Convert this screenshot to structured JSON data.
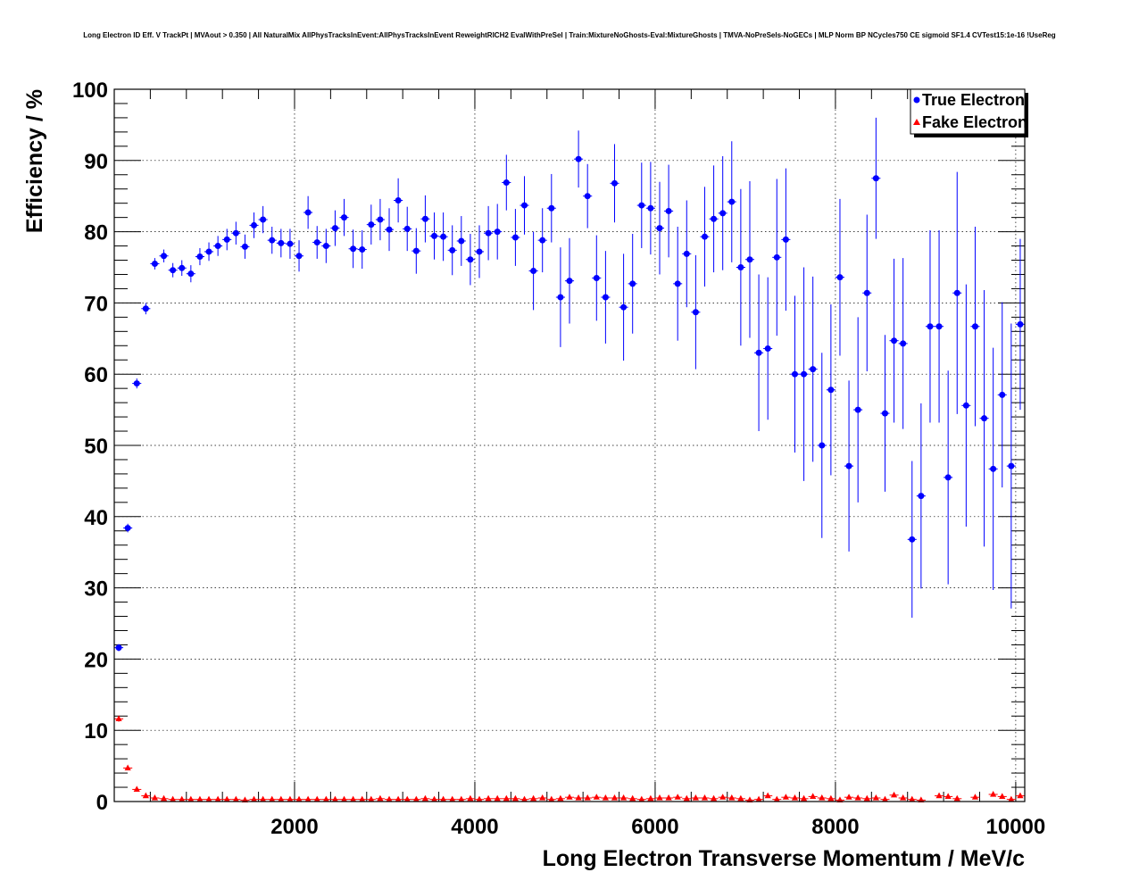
{
  "chart_data": {
    "type": "scatter",
    "title": "Long Electron ID Eff. V TrackPt | MVAout > 0.350 | All NaturalMix AllPhysTracksInEvent:AllPhysTracksInEvent ReweightRICH2 EvalWithPreSel | Train:MixtureNoGhosts-Eval:MixtureGhosts | TMVA-NoPreSels-NoGECs | MLP Norm BP NCycles750 CE sigmoid SF1.4 CVTest15:1e-16 !UseReg",
    "xlabel": "Long Electron Transverse Momentum / MeV/c",
    "ylabel": "Efficiency / %",
    "xlim": [
      0,
      10100
    ],
    "ylim": [
      0,
      100
    ],
    "x_ticks": [
      2000,
      4000,
      6000,
      8000,
      10000
    ],
    "y_ticks": [
      0,
      10,
      20,
      30,
      40,
      50,
      60,
      70,
      80,
      90,
      100
    ],
    "grid": true,
    "legend_position": "top-right",
    "bin_width": 100,
    "series": [
      {
        "name": "True Electron",
        "color": "#0000ff",
        "marker": "circle",
        "x": [
          50,
          150,
          250,
          350,
          450,
          550,
          650,
          750,
          850,
          950,
          1050,
          1150,
          1250,
          1350,
          1450,
          1550,
          1650,
          1750,
          1850,
          1950,
          2050,
          2150,
          2250,
          2350,
          2450,
          2550,
          2650,
          2750,
          2850,
          2950,
          3050,
          3150,
          3250,
          3350,
          3450,
          3550,
          3650,
          3750,
          3850,
          3950,
          4050,
          4150,
          4250,
          4350,
          4450,
          4550,
          4650,
          4750,
          4850,
          4950,
          5050,
          5150,
          5250,
          5350,
          5450,
          5550,
          5650,
          5750,
          5850,
          5950,
          6050,
          6150,
          6250,
          6350,
          6450,
          6550,
          6650,
          6750,
          6850,
          6950,
          7050,
          7150,
          7250,
          7350,
          7450,
          7550,
          7650,
          7750,
          7850,
          7950,
          8050,
          8150,
          8250,
          8350,
          8450,
          8550,
          8650,
          8750,
          8850,
          8950,
          9050,
          9150,
          9250,
          9350,
          9450,
          9550,
          9650,
          9750,
          9850,
          9950,
          10050
        ],
        "y": [
          21.6,
          38.4,
          58.7,
          69.2,
          75.5,
          76.6,
          74.6,
          74.9,
          74.1,
          76.5,
          77.2,
          78.0,
          78.9,
          79.8,
          77.9,
          80.9,
          81.7,
          78.8,
          78.4,
          78.3,
          76.6,
          82.7,
          78.5,
          78.0,
          80.5,
          82.0,
          77.6,
          77.5,
          81.0,
          81.7,
          80.3,
          84.4,
          80.4,
          77.3,
          81.8,
          79.4,
          79.3,
          77.4,
          78.7,
          76.1,
          77.2,
          79.8,
          80.0,
          86.9,
          79.2,
          83.7,
          74.5,
          78.8,
          83.3,
          70.8,
          73.1,
          90.2,
          85.0,
          73.5,
          70.8,
          86.8,
          69.4,
          72.7,
          83.7,
          83.3,
          80.5,
          82.9,
          72.7,
          76.9,
          68.7,
          79.3,
          81.8,
          82.6,
          84.2,
          75.0,
          76.1,
          63.0,
          63.6,
          76.4,
          78.9,
          60.0,
          60.0,
          60.7,
          50.0,
          57.8,
          73.6,
          47.1,
          55.0,
          71.4,
          87.5,
          54.5,
          64.7,
          64.3,
          36.8,
          42.9,
          66.7,
          66.7,
          45.5,
          71.4,
          55.6,
          66.7,
          53.8,
          46.7,
          57.1,
          47.1,
          67.0
        ],
        "err": [
          0.5,
          0.6,
          0.7,
          0.8,
          0.8,
          0.9,
          1.0,
          1.1,
          1.2,
          1.2,
          1.3,
          1.4,
          1.5,
          1.6,
          1.7,
          1.8,
          1.9,
          1.9,
          2.0,
          2.1,
          2.2,
          2.3,
          2.3,
          2.4,
          2.5,
          2.6,
          2.7,
          2.7,
          2.8,
          2.9,
          3.0,
          3.1,
          3.1,
          3.2,
          3.3,
          3.3,
          3.4,
          3.5,
          3.5,
          3.6,
          3.7,
          3.8,
          3.9,
          3.9,
          4.0,
          4.1,
          5.5,
          4.5,
          4.8,
          7.0,
          6.0,
          4.0,
          4.5,
          6.0,
          6.5,
          5.5,
          7.5,
          7.0,
          6.0,
          6.5,
          6.5,
          6.5,
          8.0,
          7.5,
          8.0,
          7.0,
          7.5,
          8.0,
          8.5,
          11.0,
          11.0,
          11.0,
          10.0,
          11.0,
          10.0,
          11.0,
          15.0,
          13.0,
          13.0,
          12.0,
          11.0,
          12.0,
          13.0,
          11.0,
          8.5,
          11.0,
          11.5,
          12.0,
          11.0,
          13.0,
          13.5,
          13.5,
          15.0,
          17.0,
          17.0,
          14.0,
          18.0,
          17.0,
          13.0,
          20.0,
          12.0
        ]
      },
      {
        "name": "Fake Electron",
        "color": "#ff0000",
        "marker": "triangle",
        "x": [
          50,
          150,
          250,
          350,
          450,
          550,
          650,
          750,
          850,
          950,
          1050,
          1150,
          1250,
          1350,
          1450,
          1550,
          1650,
          1750,
          1850,
          1950,
          2050,
          2150,
          2250,
          2350,
          2450,
          2550,
          2650,
          2750,
          2850,
          2950,
          3050,
          3150,
          3250,
          3350,
          3450,
          3550,
          3650,
          3750,
          3850,
          3950,
          4050,
          4150,
          4250,
          4350,
          4450,
          4550,
          4650,
          4750,
          4850,
          4950,
          5050,
          5150,
          5250,
          5350,
          5450,
          5550,
          5650,
          5750,
          5850,
          5950,
          6050,
          6150,
          6250,
          6350,
          6450,
          6550,
          6650,
          6750,
          6850,
          6950,
          7050,
          7150,
          7250,
          7350,
          7450,
          7550,
          7650,
          7750,
          7850,
          7950,
          8050,
          8150,
          8250,
          8350,
          8450,
          8550,
          8650,
          8750,
          8850,
          8950,
          9150,
          9250,
          9350,
          9550,
          9750,
          9850,
          9950,
          10050
        ],
        "y": [
          11.6,
          4.7,
          1.7,
          0.8,
          0.5,
          0.4,
          0.3,
          0.3,
          0.3,
          0.3,
          0.3,
          0.3,
          0.3,
          0.3,
          0.2,
          0.3,
          0.3,
          0.3,
          0.3,
          0.3,
          0.3,
          0.3,
          0.3,
          0.3,
          0.3,
          0.3,
          0.3,
          0.3,
          0.3,
          0.4,
          0.3,
          0.3,
          0.3,
          0.3,
          0.4,
          0.3,
          0.3,
          0.3,
          0.3,
          0.4,
          0.3,
          0.4,
          0.4,
          0.4,
          0.4,
          0.3,
          0.4,
          0.5,
          0.3,
          0.4,
          0.6,
          0.5,
          0.5,
          0.6,
          0.5,
          0.5,
          0.5,
          0.4,
          0.3,
          0.4,
          0.5,
          0.5,
          0.6,
          0.4,
          0.5,
          0.5,
          0.4,
          0.6,
          0.5,
          0.4,
          0.2,
          0.3,
          0.8,
          0.3,
          0.6,
          0.5,
          0.4,
          0.7,
          0.5,
          0.4,
          0.2,
          0.6,
          0.5,
          0.4,
          0.5,
          0.3,
          0.9,
          0.5,
          0.3,
          0.2,
          0.8,
          0.7,
          0.4,
          0.6,
          1.0,
          0.7,
          0.3,
          0.8
        ],
        "err": [
          0.4,
          0.3,
          0.2,
          0.15,
          0.1,
          0.1,
          0.1,
          0.1,
          0.1,
          0.1,
          0.1,
          0.1,
          0.1,
          0.1,
          0.1,
          0.1,
          0.1,
          0.1,
          0.1,
          0.1,
          0.1,
          0.1,
          0.1,
          0.1,
          0.1,
          0.1,
          0.1,
          0.1,
          0.1,
          0.1,
          0.1,
          0.1,
          0.1,
          0.1,
          0.1,
          0.1,
          0.1,
          0.1,
          0.1,
          0.1,
          0.1,
          0.1,
          0.1,
          0.1,
          0.1,
          0.1,
          0.1,
          0.1,
          0.1,
          0.1,
          0.1,
          0.1,
          0.1,
          0.1,
          0.1,
          0.1,
          0.1,
          0.1,
          0.1,
          0.1,
          0.1,
          0.1,
          0.1,
          0.1,
          0.1,
          0.1,
          0.1,
          0.1,
          0.1,
          0.1,
          0.1,
          0.1,
          0.1,
          0.1,
          0.1,
          0.1,
          0.1,
          0.1,
          0.1,
          0.1,
          0.1,
          0.1,
          0.1,
          0.1,
          0.1,
          0.1,
          0.1,
          0.1,
          0.1,
          0.1,
          0.1,
          0.1,
          0.1,
          0.1,
          0.1,
          0.1,
          0.1,
          0.1
        ]
      }
    ]
  }
}
